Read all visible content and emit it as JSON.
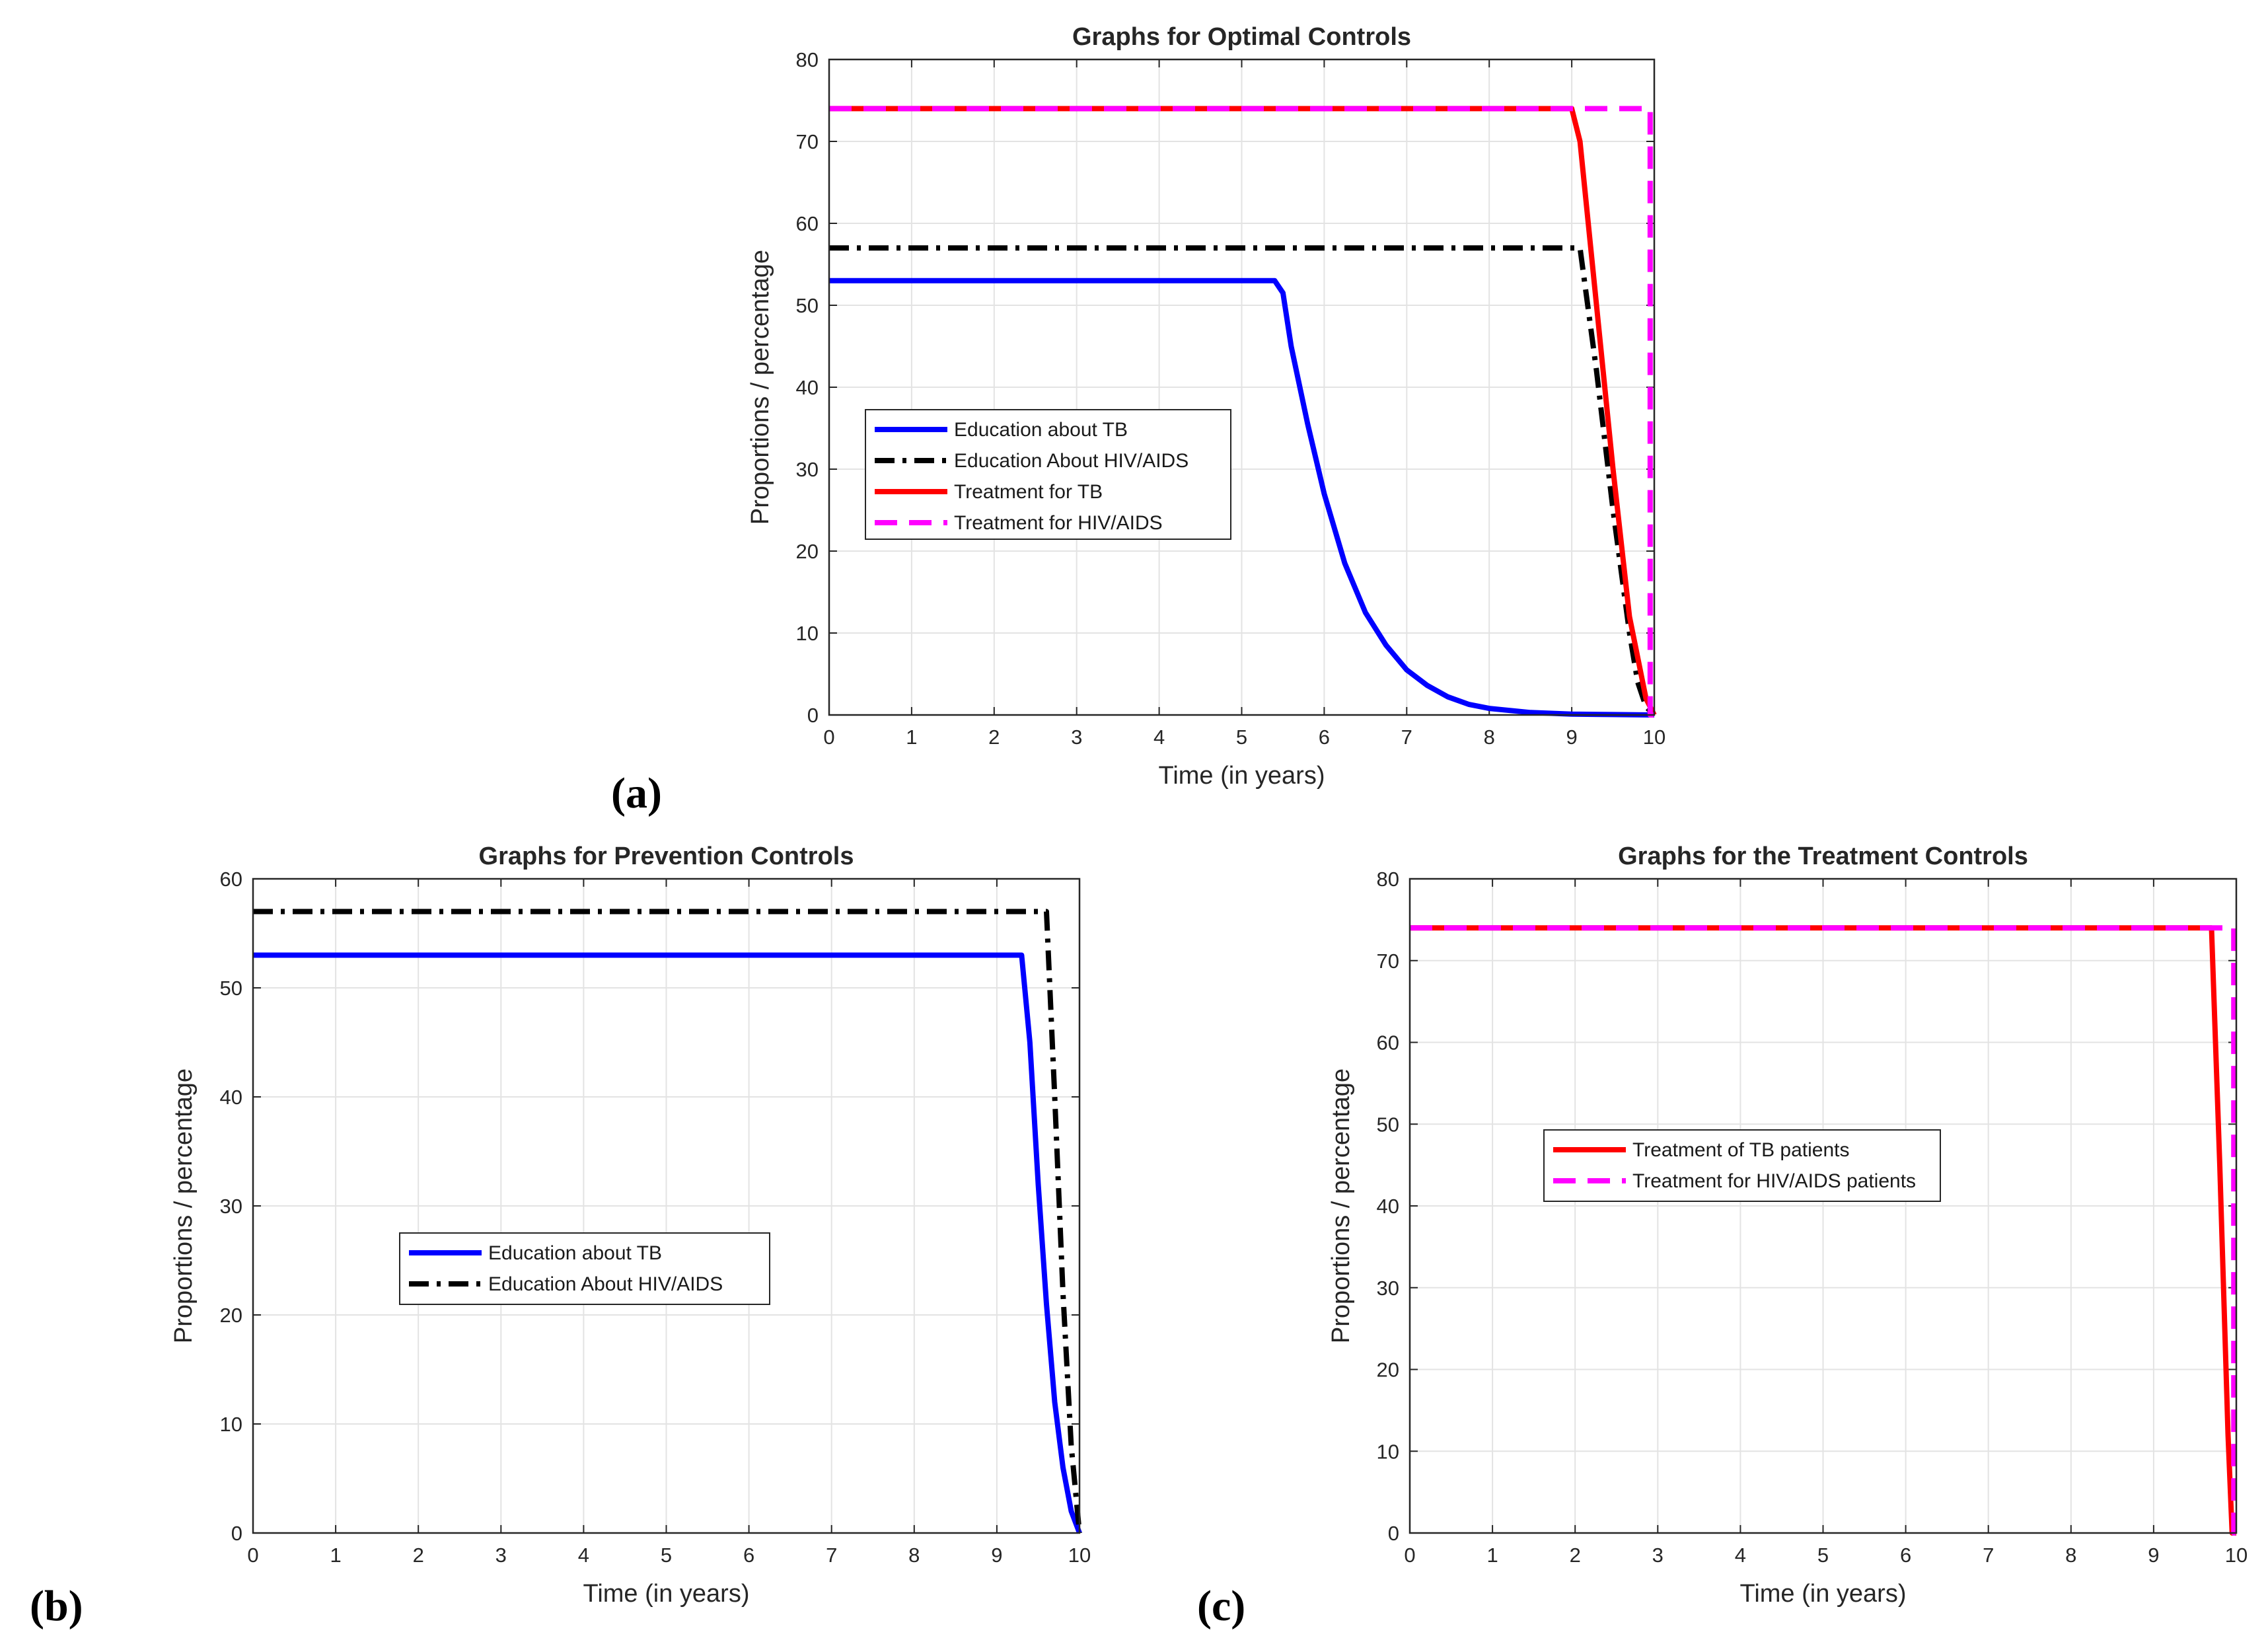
{
  "chart_data": [
    {
      "type": "line",
      "panel_label": "(a)",
      "title": "Graphs for Optimal Controls",
      "xlabel": "Time (in years)",
      "ylabel": "Proportions / percentage",
      "xlim": [
        0,
        10
      ],
      "ylim": [
        0,
        80
      ],
      "xticks": [
        0,
        1,
        2,
        3,
        4,
        5,
        6,
        7,
        8,
        9,
        10
      ],
      "yticks": [
        0,
        10,
        20,
        30,
        40,
        50,
        60,
        70,
        80
      ],
      "grid": true,
      "legend_position": "left-middle",
      "series": [
        {
          "name": "Education about TB",
          "color": "#0000ff",
          "style": "solid",
          "x": [
            0,
            5.4,
            5.5,
            5.6,
            5.8,
            6.0,
            6.25,
            6.5,
            6.75,
            7.0,
            7.25,
            7.5,
            7.75,
            8.0,
            8.5,
            9.0,
            9.5,
            10.0
          ],
          "y": [
            53,
            53,
            51.5,
            45,
            35.5,
            27,
            18.5,
            12.5,
            8.5,
            5.5,
            3.6,
            2.2,
            1.3,
            0.8,
            0.3,
            0.1,
            0.05,
            0
          ]
        },
        {
          "name": "Education About HIV/AIDS",
          "color": "#000000",
          "style": "dashdot",
          "x": [
            0,
            9.1,
            9.3,
            9.5,
            9.7,
            9.8,
            9.9,
            10.0
          ],
          "y": [
            57,
            57,
            42,
            25,
            10,
            4,
            1,
            0
          ]
        },
        {
          "name": "Treatment for TB",
          "color": "#ff0000",
          "style": "solid",
          "x": [
            0,
            9.0,
            9.1,
            9.3,
            9.5,
            9.7,
            9.9,
            10.0
          ],
          "y": [
            74,
            74,
            70,
            50,
            30,
            12,
            2,
            0
          ]
        },
        {
          "name": "Treatment for HIV/AIDS",
          "color": "#ff00ff",
          "style": "dashed",
          "x": [
            0,
            9.95,
            9.95,
            10.0
          ],
          "y": [
            74,
            74,
            0,
            0
          ]
        }
      ]
    },
    {
      "type": "line",
      "panel_label": "(b)",
      "title": "Graphs for Prevention Controls",
      "xlabel": "Time (in years)",
      "ylabel": "Proportions / percentage",
      "xlim": [
        0,
        10
      ],
      "ylim": [
        0,
        60
      ],
      "xticks": [
        0,
        1,
        2,
        3,
        4,
        5,
        6,
        7,
        8,
        9,
        10
      ],
      "yticks": [
        0,
        10,
        20,
        30,
        40,
        50,
        60
      ],
      "grid": true,
      "legend_position": "center-left",
      "series": [
        {
          "name": "Education about TB",
          "color": "#0000ff",
          "style": "solid",
          "x": [
            0,
            9.3,
            9.4,
            9.5,
            9.6,
            9.7,
            9.8,
            9.9,
            10.0
          ],
          "y": [
            53,
            53,
            45,
            32,
            21,
            12,
            6,
            2,
            0
          ]
        },
        {
          "name": "Education About HIV/AIDS",
          "color": "#000000",
          "style": "dashdot",
          "x": [
            0,
            9.6,
            9.7,
            9.8,
            9.9,
            10.0
          ],
          "y": [
            57,
            57,
            40,
            22,
            8,
            0
          ]
        }
      ]
    },
    {
      "type": "line",
      "panel_label": "(c)",
      "title": "Graphs for the Treatment Controls",
      "xlabel": "Time (in years)",
      "ylabel": "Proportions / percentage",
      "xlim": [
        0,
        10
      ],
      "ylim": [
        0,
        80
      ],
      "xticks": [
        0,
        1,
        2,
        3,
        4,
        5,
        6,
        7,
        8,
        9,
        10
      ],
      "yticks": [
        0,
        10,
        20,
        30,
        40,
        50,
        60,
        70,
        80
      ],
      "grid": true,
      "legend_position": "center",
      "series": [
        {
          "name": "Treatment of TB patients",
          "color": "#ff0000",
          "style": "solid",
          "x": [
            0,
            9.7,
            9.8,
            9.9,
            9.95,
            10.0
          ],
          "y": [
            74,
            74,
            45,
            12,
            0,
            0
          ]
        },
        {
          "name": "Treatment for HIV/AIDS patients",
          "color": "#ff00ff",
          "style": "dashed",
          "x": [
            0,
            9.97,
            9.97,
            10.0
          ],
          "y": [
            74,
            74,
            0,
            0
          ]
        }
      ]
    }
  ]
}
